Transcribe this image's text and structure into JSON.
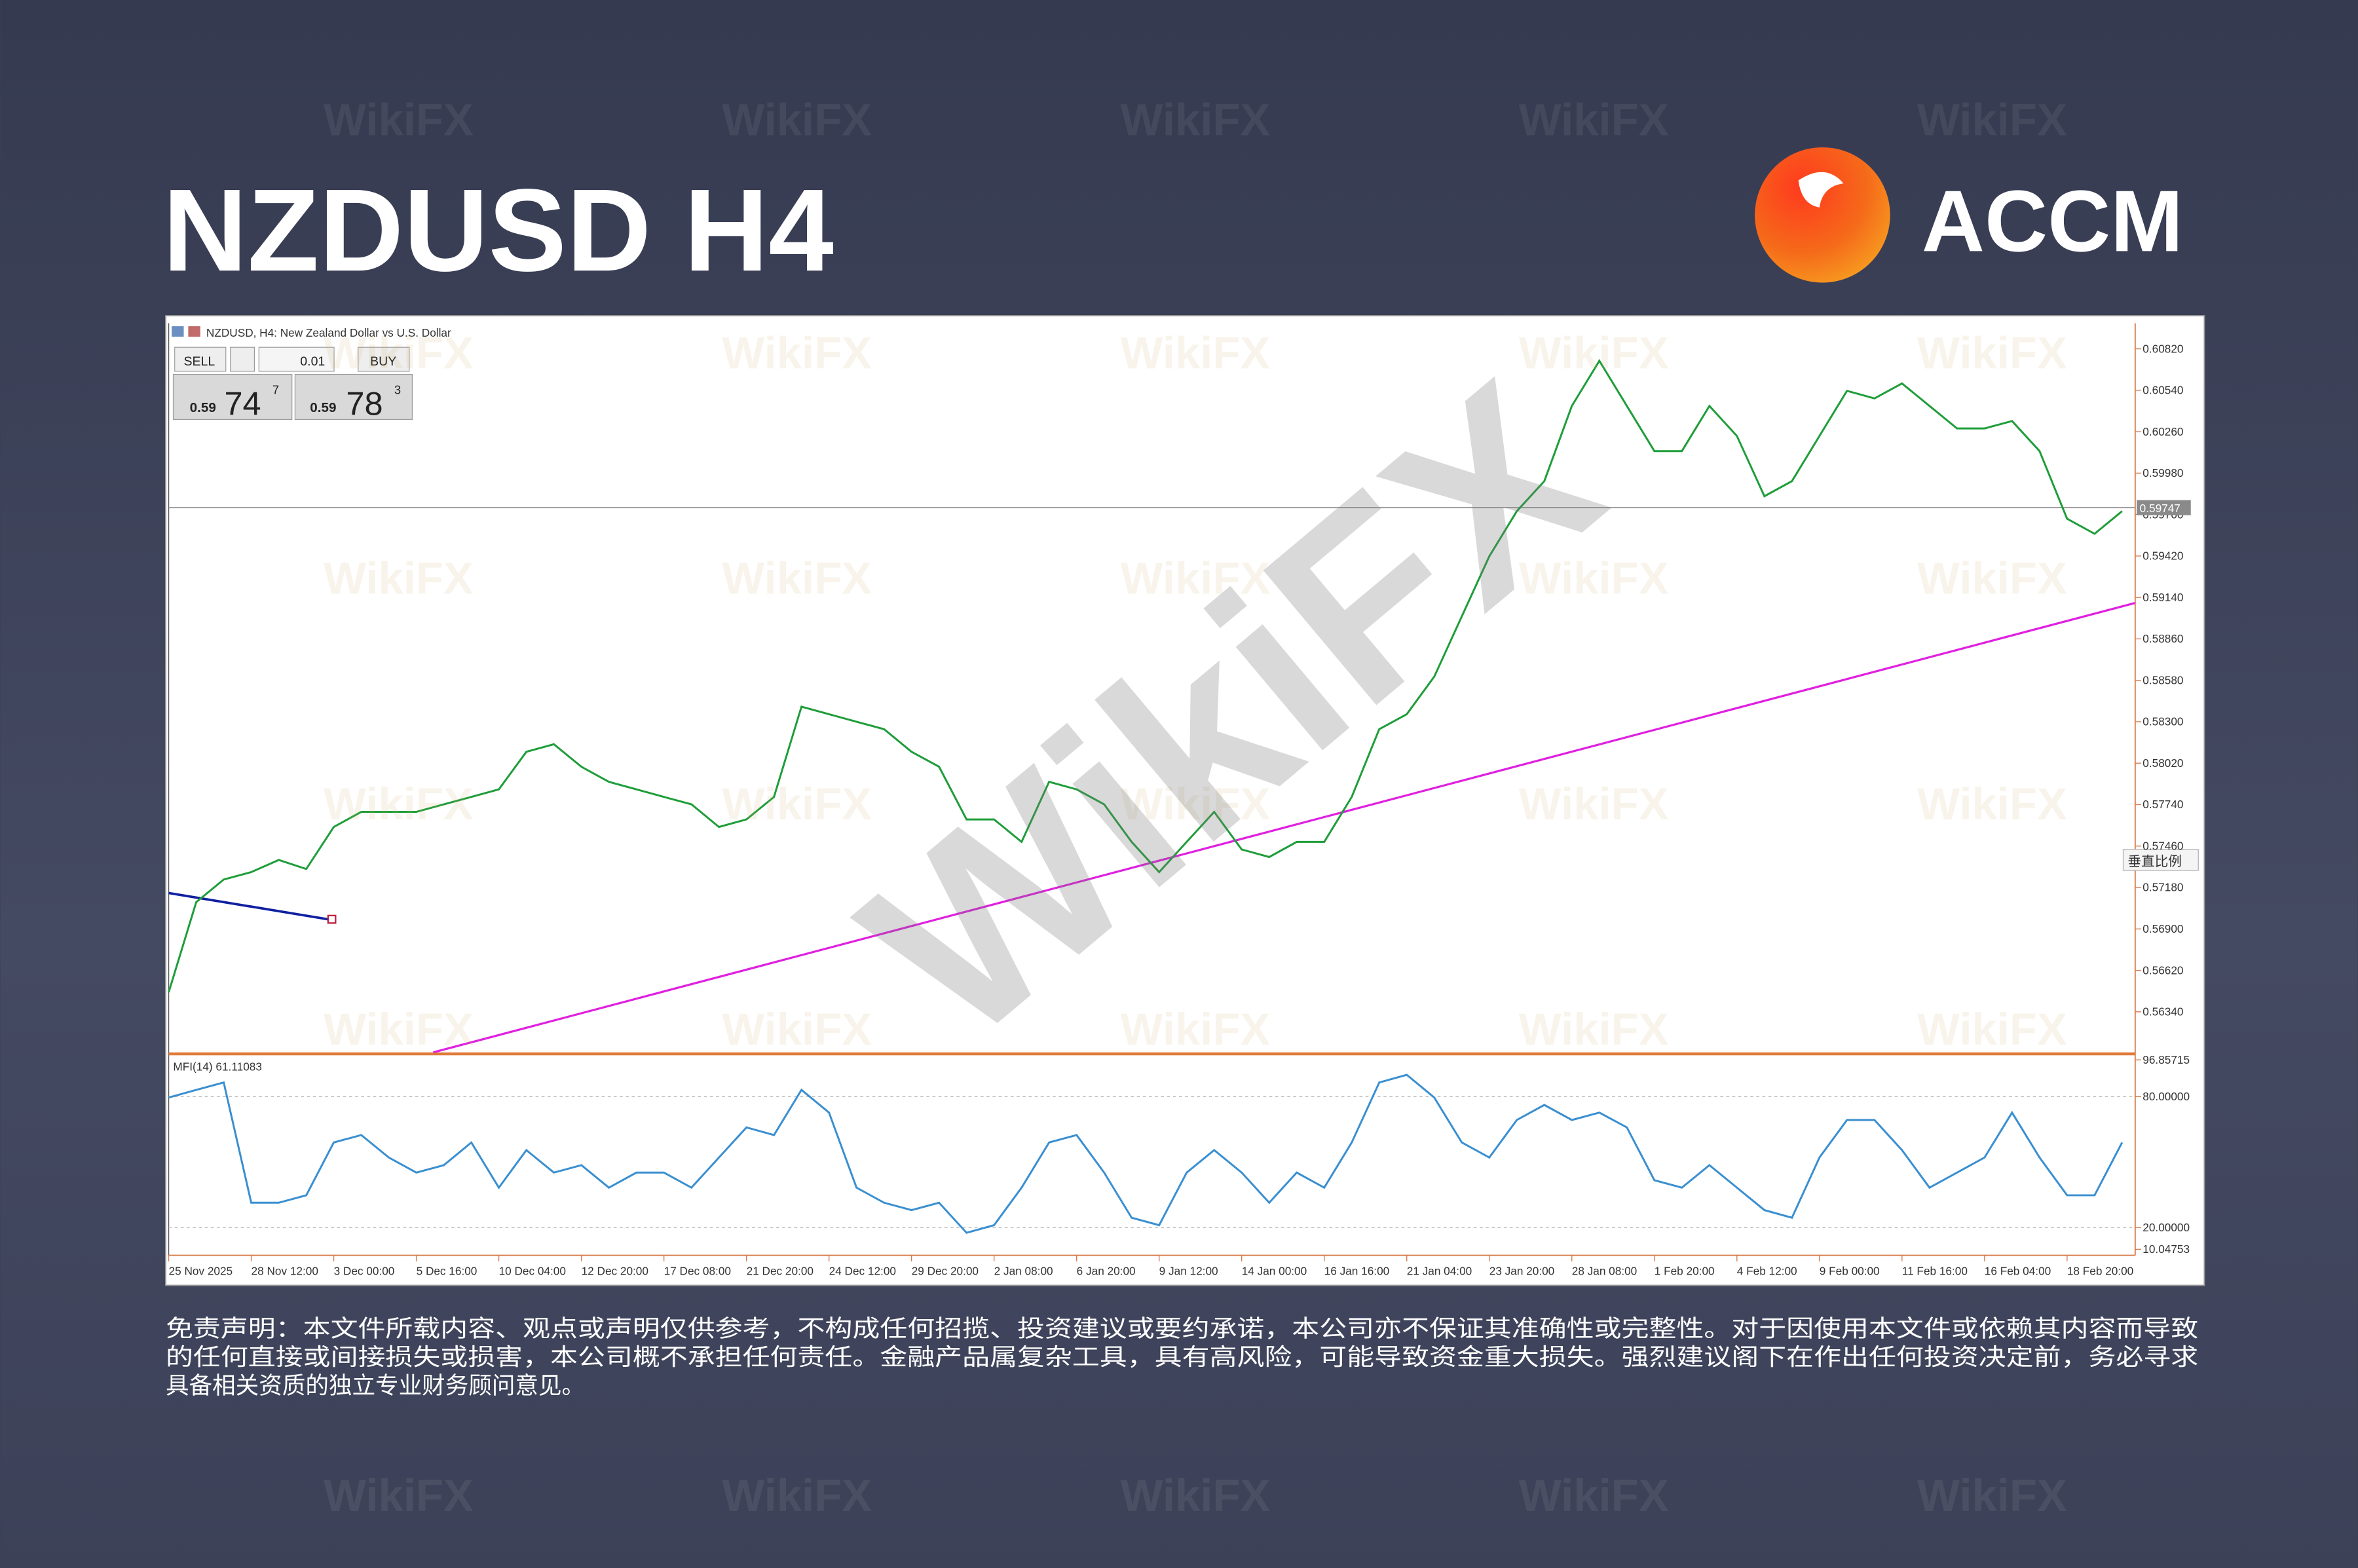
{
  "header": {
    "title": "NZDUSD H4",
    "brand": "ACCM"
  },
  "watermark": "WikiFX",
  "chart_data": {
    "type": "line",
    "title": "NZDUSD, H4: New Zealand Dollar vs U.S. Dollar",
    "sell_label": "SELL",
    "buy_label": "BUY",
    "lot": "0.01",
    "bid": [
      "0.59",
      "74",
      "7"
    ],
    "ask": [
      "0.59",
      "78",
      "3"
    ],
    "color": "#1f9d3a",
    "values": [
      0.56472,
      0.57081,
      0.57234,
      0.57284,
      0.57366,
      0.57305,
      0.57589,
      0.57691,
      0.57691,
      0.57691,
      0.57742,
      0.57792,
      0.57843,
      0.58097,
      0.58148,
      0.57996,
      0.57894,
      0.57843,
      0.57792,
      0.57742,
      0.57589,
      0.5764,
      0.57792,
      0.58402,
      0.58351,
      0.583,
      0.5825,
      0.58097,
      0.57996,
      0.5764,
      0.5764,
      0.57488,
      0.57894,
      0.57843,
      0.57742,
      0.57488,
      0.57284,
      0.57488,
      0.57691,
      0.57437,
      0.57386,
      0.57488,
      0.57488,
      0.57792,
      0.5825,
      0.58351,
      0.58605,
      0.59012,
      0.59418,
      0.59723,
      0.59926,
      0.60434,
      0.60739,
      0.60434,
      0.60129,
      0.60129,
      0.60434,
      0.60231,
      0.59824,
      0.59926,
      0.60231,
      0.60536,
      0.60485,
      0.60586,
      0.60434,
      0.60282,
      0.60282,
      0.60332,
      0.60129,
      0.59672,
      0.5957,
      0.59723
    ],
    "xtick_labels": [
      "25 Nov 2025",
      "28 Nov 12:00",
      "3 Dec 00:00",
      "5 Dec 16:00",
      "10 Dec 04:00",
      "12 Dec 20:00",
      "17 Dec 08:00",
      "21 Dec 20:00",
      "24 Dec 12:00",
      "29 Dec 20:00",
      "2 Jan 08:00",
      "6 Jan 20:00",
      "9 Jan 12:00",
      "14 Jan 00:00",
      "16 Jan 16:00",
      "21 Jan 04:00",
      "23 Jan 20:00",
      "28 Jan 08:00",
      "1 Feb 20:00",
      "4 Feb 12:00",
      "9 Feb 00:00",
      "11 Feb 16:00",
      "16 Feb 04:00",
      "18 Feb 20:00"
    ],
    "ylim": [
      0.56066,
      0.60993
    ],
    "yticks": [
      {
        "value": 0.5634,
        "label": "0.56340"
      },
      {
        "value": 0.5662,
        "label": "0.56620"
      },
      {
        "value": 0.569,
        "label": "0.56900"
      },
      {
        "value": 0.5718,
        "label": "0.57180"
      },
      {
        "value": 0.5746,
        "label": "0.57460"
      },
      {
        "value": 0.5774,
        "label": "0.57740"
      },
      {
        "value": 0.5802,
        "label": "0.58020"
      },
      {
        "value": 0.583,
        "label": "0.58300"
      },
      {
        "value": 0.5858,
        "label": "0.58580"
      },
      {
        "value": 0.5886,
        "label": "0.58860"
      },
      {
        "value": 0.5914,
        "label": "0.59140"
      },
      {
        "value": 0.5942,
        "label": "0.59420"
      },
      {
        "value": 0.597,
        "label": "0.59700"
      },
      {
        "value": 0.5998,
        "label": "0.59980"
      },
      {
        "value": 0.6026,
        "label": "0.60260"
      },
      {
        "value": 0.6054,
        "label": "0.60540"
      },
      {
        "value": 0.6082,
        "label": "0.60820"
      }
    ],
    "current_price": 0.59747,
    "trendline": [
      0.56066,
      0.59103
    ],
    "trendline_color": "#e020e0",
    "scale_button": "垂直比例",
    "indicator": {
      "type": "line",
      "title": "MFI(14) 61.11083",
      "color": "#3a8fd0",
      "values": [
        79.6,
        83.1,
        86.5,
        31.4,
        31.4,
        34.8,
        59.0,
        62.4,
        52.1,
        45.2,
        48.6,
        59.0,
        38.3,
        55.5,
        45.2,
        48.6,
        38.3,
        45.2,
        45.2,
        38.3,
        52.1,
        65.9,
        62.4,
        83.1,
        72.7,
        38.3,
        31.4,
        28.0,
        31.4,
        17.6,
        21.1,
        38.3,
        59.0,
        62.4,
        45.2,
        24.5,
        21.1,
        45.2,
        55.5,
        45.2,
        31.4,
        45.2,
        38.3,
        59.0,
        86.5,
        90.0,
        79.6,
        59.0,
        52.1,
        69.3,
        76.2,
        69.3,
        72.7,
        65.9,
        41.7,
        38.3,
        48.6,
        38.3,
        28.0,
        24.5,
        52.1,
        69.3,
        69.3,
        55.5,
        38.3,
        45.2,
        52.1,
        72.7,
        52.1,
        34.8,
        34.8,
        59.0
      ],
      "ylim": [
        10.04753,
        96.85715
      ],
      "yticks": [
        10.04753,
        {
          "value": 20,
          "label": "20.00000"
        },
        {
          "value": 80,
          "label": "80.00000"
        },
        96.85715
      ]
    }
  },
  "disclaimer": [
    "免责声明：本文件所载内容、观点或声明仅供参考，不构成任何招揽、投资建议或要约承诺，本公司亦不保证其准确性或完整性。对于因使用本文件或依赖其内容而导致",
    "的任何直接或间接损失或损害，本公司概不承担任何责任。金融产品属复杂工具，具有高风险，可能导致资金重大损失。强烈建议阁下在作出任何投资决定前，务必寻求",
    "具备相关资质的独立专业财务顾问意见。"
  ]
}
